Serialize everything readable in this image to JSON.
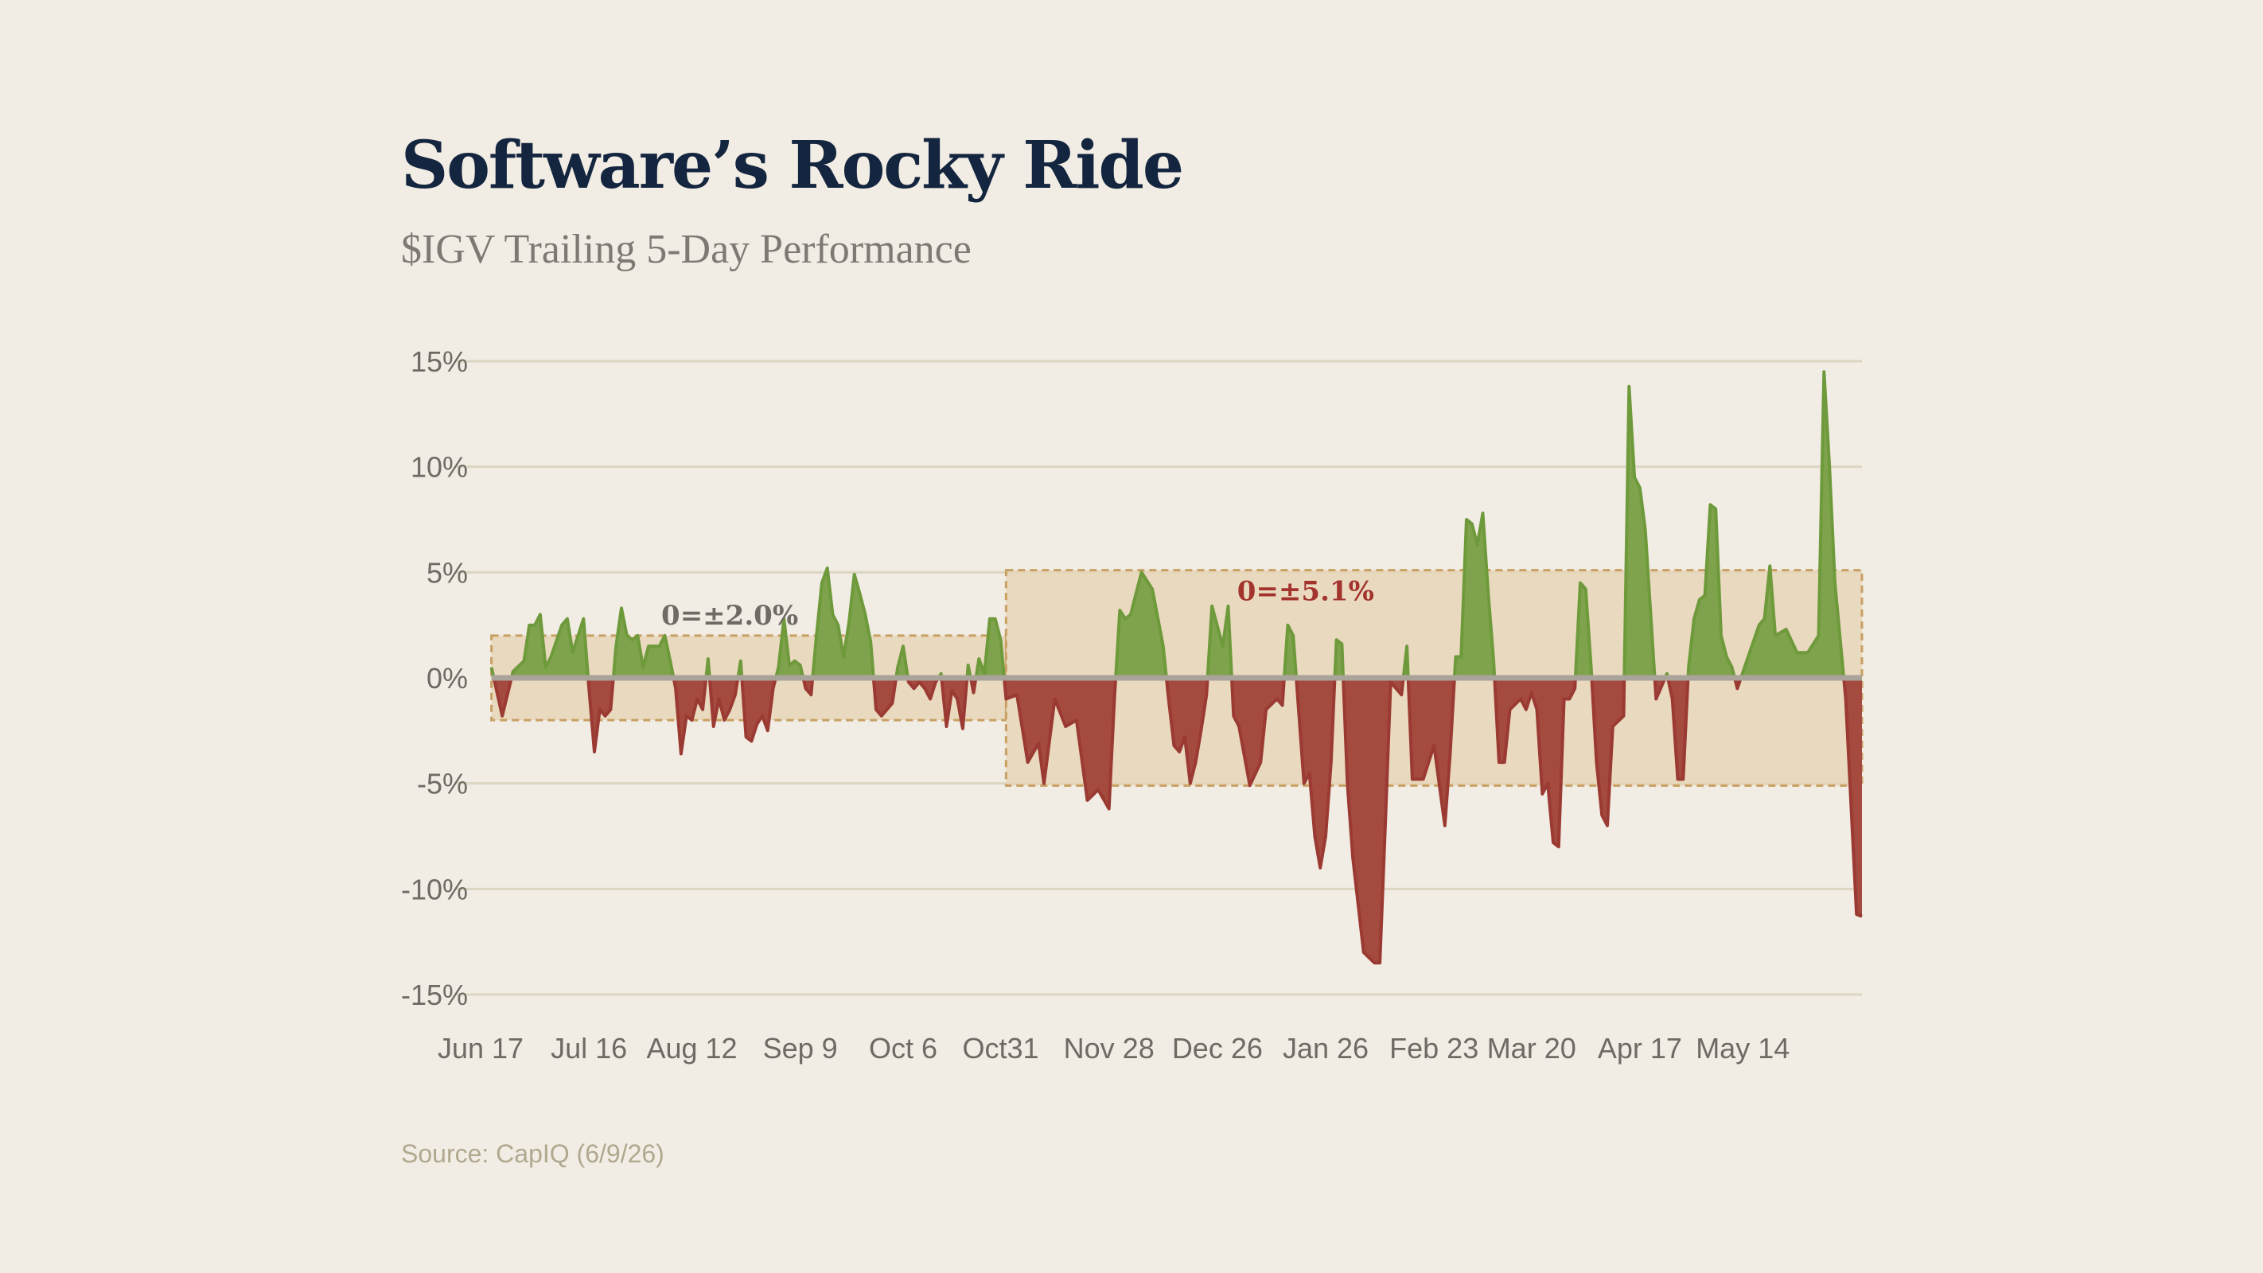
{
  "header": {
    "title": "Software’s Rocky Ride",
    "subtitle": "$IGV Trailing 5-Day Performance"
  },
  "footer": {
    "source": "Source: CapIQ (6/9/26)"
  },
  "colors": {
    "background": "#f1ece4",
    "positive_fill": "#7fa24c",
    "positive_line": "#6f9a3c",
    "negative_fill": "#a44a3f",
    "negative_line": "#9a3a32",
    "band_fill": "#e6d6b8",
    "band_border": "#c9a063",
    "grid": "#dcd6c2",
    "zero_line": "#a9a39a",
    "label_gray": "#6e6b64",
    "label_red": "#a3342d"
  },
  "chart_data": {
    "type": "area",
    "title": "Software’s Rocky Ride",
    "subtitle": "$IGV Trailing 5-Day Performance",
    "xlabel": "",
    "ylabel": "",
    "ylim": [
      -15,
      15
    ],
    "yticks": [
      15,
      10,
      5,
      0,
      -5,
      -10,
      -15
    ],
    "ytick_labels": [
      "15%",
      "10%",
      "5%",
      "0%",
      "-5%",
      "-10%",
      "-15%"
    ],
    "xlim": [
      0,
      255
    ],
    "xticks": [
      0,
      20,
      39,
      59,
      78,
      96,
      116,
      136,
      156,
      176,
      194,
      214,
      233
    ],
    "xtick_labels": [
      "Jun 17",
      "Jul 16",
      "Aug 12",
      "Sep 9",
      "Oct 6",
      "Oct31",
      "Nov 28",
      "Dec 26",
      "Jan 26",
      "Feb 23",
      "Mar 20",
      "Apr 17",
      "May 14"
    ],
    "grid": true,
    "bands": [
      {
        "x_start": 2,
        "x_end": 97,
        "y_low": -2.0,
        "y_high": 2.0,
        "label": "0=±2.0%",
        "label_color": "gray"
      },
      {
        "x_start": 97,
        "x_end": 255,
        "y_low": -5.1,
        "y_high": 5.1,
        "label": "0=±5.1%",
        "label_color": "red"
      }
    ],
    "x": [
      2,
      4,
      6,
      8,
      9,
      10,
      11,
      12,
      13,
      15,
      16,
      17,
      19,
      20,
      21,
      22,
      23,
      24,
      25,
      26,
      27,
      28,
      29,
      30,
      31,
      32,
      33,
      34,
      35,
      36,
      37,
      38,
      39,
      40,
      41,
      42,
      43,
      44,
      45,
      46,
      47,
      48,
      49,
      50,
      51,
      52,
      53,
      54,
      55,
      56,
      57,
      58,
      59,
      60,
      61,
      62,
      63,
      64,
      65,
      66,
      67,
      68,
      69,
      70,
      71,
      72,
      73,
      74,
      75,
      76,
      77,
      78,
      79,
      80,
      81,
      82,
      83,
      84,
      85,
      86,
      87,
      88,
      89,
      90,
      91,
      92,
      93,
      94,
      95,
      96,
      97,
      99,
      101,
      103,
      104,
      106,
      108,
      110,
      112,
      114,
      116,
      117,
      118,
      119,
      120,
      122,
      124,
      126,
      127,
      128,
      129,
      130,
      131,
      132,
      133,
      134,
      135,
      137,
      138,
      139,
      140,
      142,
      144,
      145,
      147,
      148,
      149,
      150,
      151,
      152,
      153,
      154,
      155,
      156,
      157,
      158,
      159,
      160,
      161,
      163,
      165,
      166,
      167,
      168,
      170,
      171,
      172,
      174,
      176,
      178,
      179,
      180,
      181,
      182,
      183,
      184,
      185,
      186,
      187,
      188,
      189,
      190,
      192,
      193,
      194,
      195,
      196,
      197,
      198,
      199,
      200,
      201,
      202,
      203,
      204,
      205,
      206,
      207,
      208,
      209,
      211,
      212,
      213,
      214,
      215,
      217,
      219,
      220,
      221,
      222,
      223,
      224,
      225,
      226,
      227,
      228,
      229,
      230,
      231,
      232,
      234,
      236,
      237,
      238,
      239,
      241,
      243,
      245,
      247,
      248,
      249,
      250,
      252,
      254,
      255
    ],
    "y": [
      0.5,
      -1.8,
      0.3,
      0.8,
      2.5,
      2.5,
      3.0,
      0.5,
      1.0,
      2.5,
      2.8,
      1.2,
      2.8,
      -0.5,
      -3.5,
      -1.5,
      -1.8,
      -1.5,
      1.5,
      3.3,
      2.0,
      1.8,
      2.0,
      0.5,
      1.5,
      1.5,
      1.5,
      2.0,
      0.8,
      -0.5,
      -3.6,
      -1.8,
      -2.0,
      -1.0,
      -1.5,
      0.9,
      -2.3,
      -1.0,
      -2.0,
      -1.5,
      -0.8,
      0.8,
      -2.8,
      -3.0,
      -2.2,
      -1.8,
      -2.5,
      -0.5,
      0.5,
      2.8,
      0.6,
      0.8,
      0.6,
      -0.5,
      -0.8,
      2.0,
      4.5,
      5.2,
      3.0,
      2.5,
      1.0,
      2.6,
      4.9,
      4.0,
      3.0,
      1.7,
      -1.5,
      -1.8,
      -1.5,
      -1.2,
      0.5,
      1.5,
      -0.2,
      -0.5,
      -0.2,
      -0.5,
      -1.0,
      -0.2,
      0.2,
      -2.3,
      -0.6,
      -1.0,
      -2.4,
      0.6,
      -0.7,
      0.9,
      0.2,
      2.8,
      2.8,
      1.8,
      -1.0,
      -0.8,
      -4.0,
      -3.1,
      -5.0,
      -1.0,
      -2.3,
      -2.0,
      -5.8,
      -5.3,
      -6.2,
      -1.0,
      3.2,
      2.8,
      3.0,
      5.0,
      4.2,
      1.5,
      -1.0,
      -3.2,
      -3.5,
      -2.8,
      -5.0,
      -4.0,
      -2.5,
      -0.8,
      3.4,
      1.5,
      3.4,
      -1.8,
      -2.3,
      -5.1,
      -4.0,
      -1.5,
      -1.0,
      -1.3,
      2.5,
      2.0,
      -1.5,
      -5.0,
      -4.5,
      -7.5,
      -9.0,
      -7.5,
      -4.0,
      1.8,
      1.6,
      -5.0,
      -8.5,
      -13.0,
      -13.5,
      -13.5,
      -7.0,
      -0.2,
      -0.8,
      1.5,
      -4.8,
      -4.8,
      -3.2,
      -7.0,
      -3.5,
      1.0,
      1.0,
      7.5,
      7.3,
      6.3,
      7.8,
      4.0,
      0.8,
      -4.0,
      -4.0,
      -1.5,
      -1.0,
      -1.5,
      -0.7,
      -1.5,
      -5.5,
      -5.0,
      -7.8,
      -8.0,
      -1.0,
      -1.0,
      -0.5,
      4.5,
      4.2,
      0.5,
      -4.0,
      -6.5,
      -7.0,
      -2.3,
      -1.8,
      13.8,
      9.5,
      9.0,
      7.0,
      -1.0,
      0.2,
      -1.0,
      -4.8,
      -4.8,
      0.5,
      2.8,
      3.7,
      3.9,
      8.2,
      8.0,
      2.0,
      1.0,
      0.5,
      -0.5,
      1.0,
      2.5,
      2.8,
      5.3,
      2.0,
      2.3,
      1.2,
      1.2,
      2.0,
      14.5,
      10.0,
      4.5,
      -1.0,
      -11.2,
      -11.3
    ]
  }
}
